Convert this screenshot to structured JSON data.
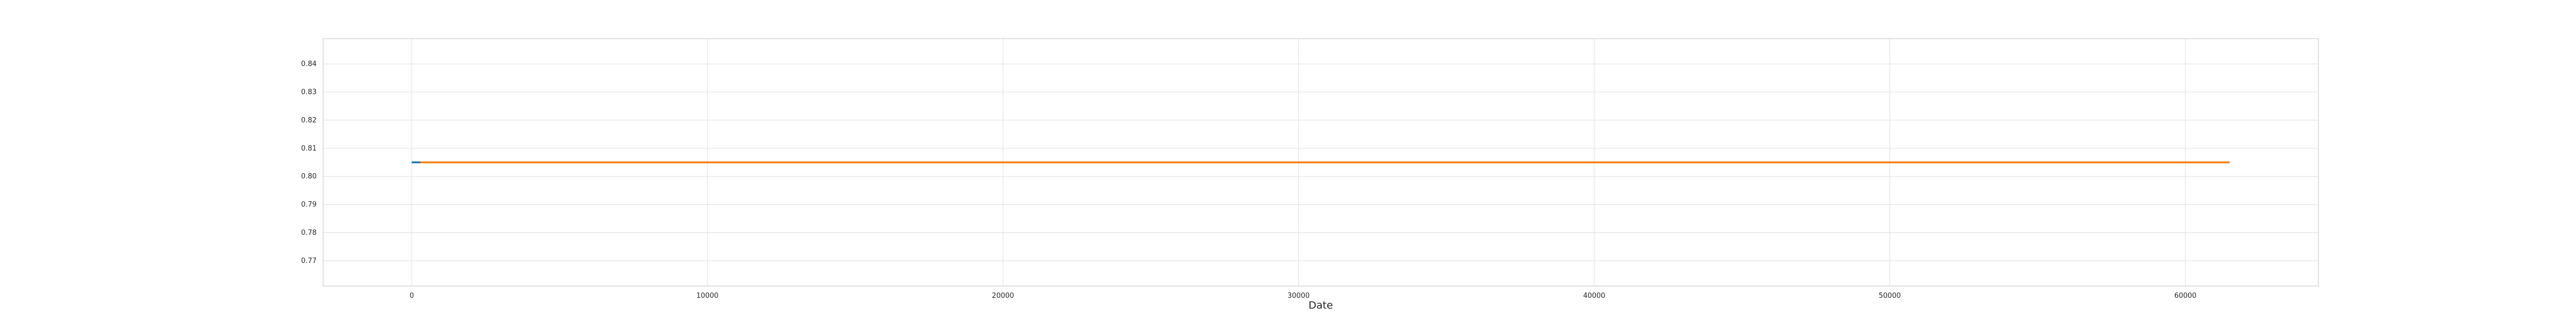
{
  "chart_data": {
    "type": "line",
    "title": "",
    "xlabel": "Date",
    "ylabel": "",
    "xlim": [
      -3000,
      64500
    ],
    "ylim": [
      0.761,
      0.849
    ],
    "xticks": [
      0,
      10000,
      20000,
      30000,
      40000,
      50000,
      60000
    ],
    "xtick_labels": [
      "0",
      "10000",
      "20000",
      "30000",
      "40000",
      "50000",
      "60000"
    ],
    "yticks": [
      0.77,
      0.78,
      0.79,
      0.8,
      0.81,
      0.82,
      0.83,
      0.84
    ],
    "ytick_labels": [
      "0.77",
      "0.78",
      "0.79",
      "0.80",
      "0.81",
      "0.82",
      "0.83",
      "0.84"
    ],
    "grid": true,
    "legend": "none",
    "series": [
      {
        "color": "#1f77b4",
        "x": [
          0,
          300
        ],
        "y": [
          0.805,
          0.805
        ]
      },
      {
        "color": "#ff7f0e",
        "x": [
          300,
          61500
        ],
        "y": [
          0.805,
          0.805
        ]
      }
    ]
  }
}
